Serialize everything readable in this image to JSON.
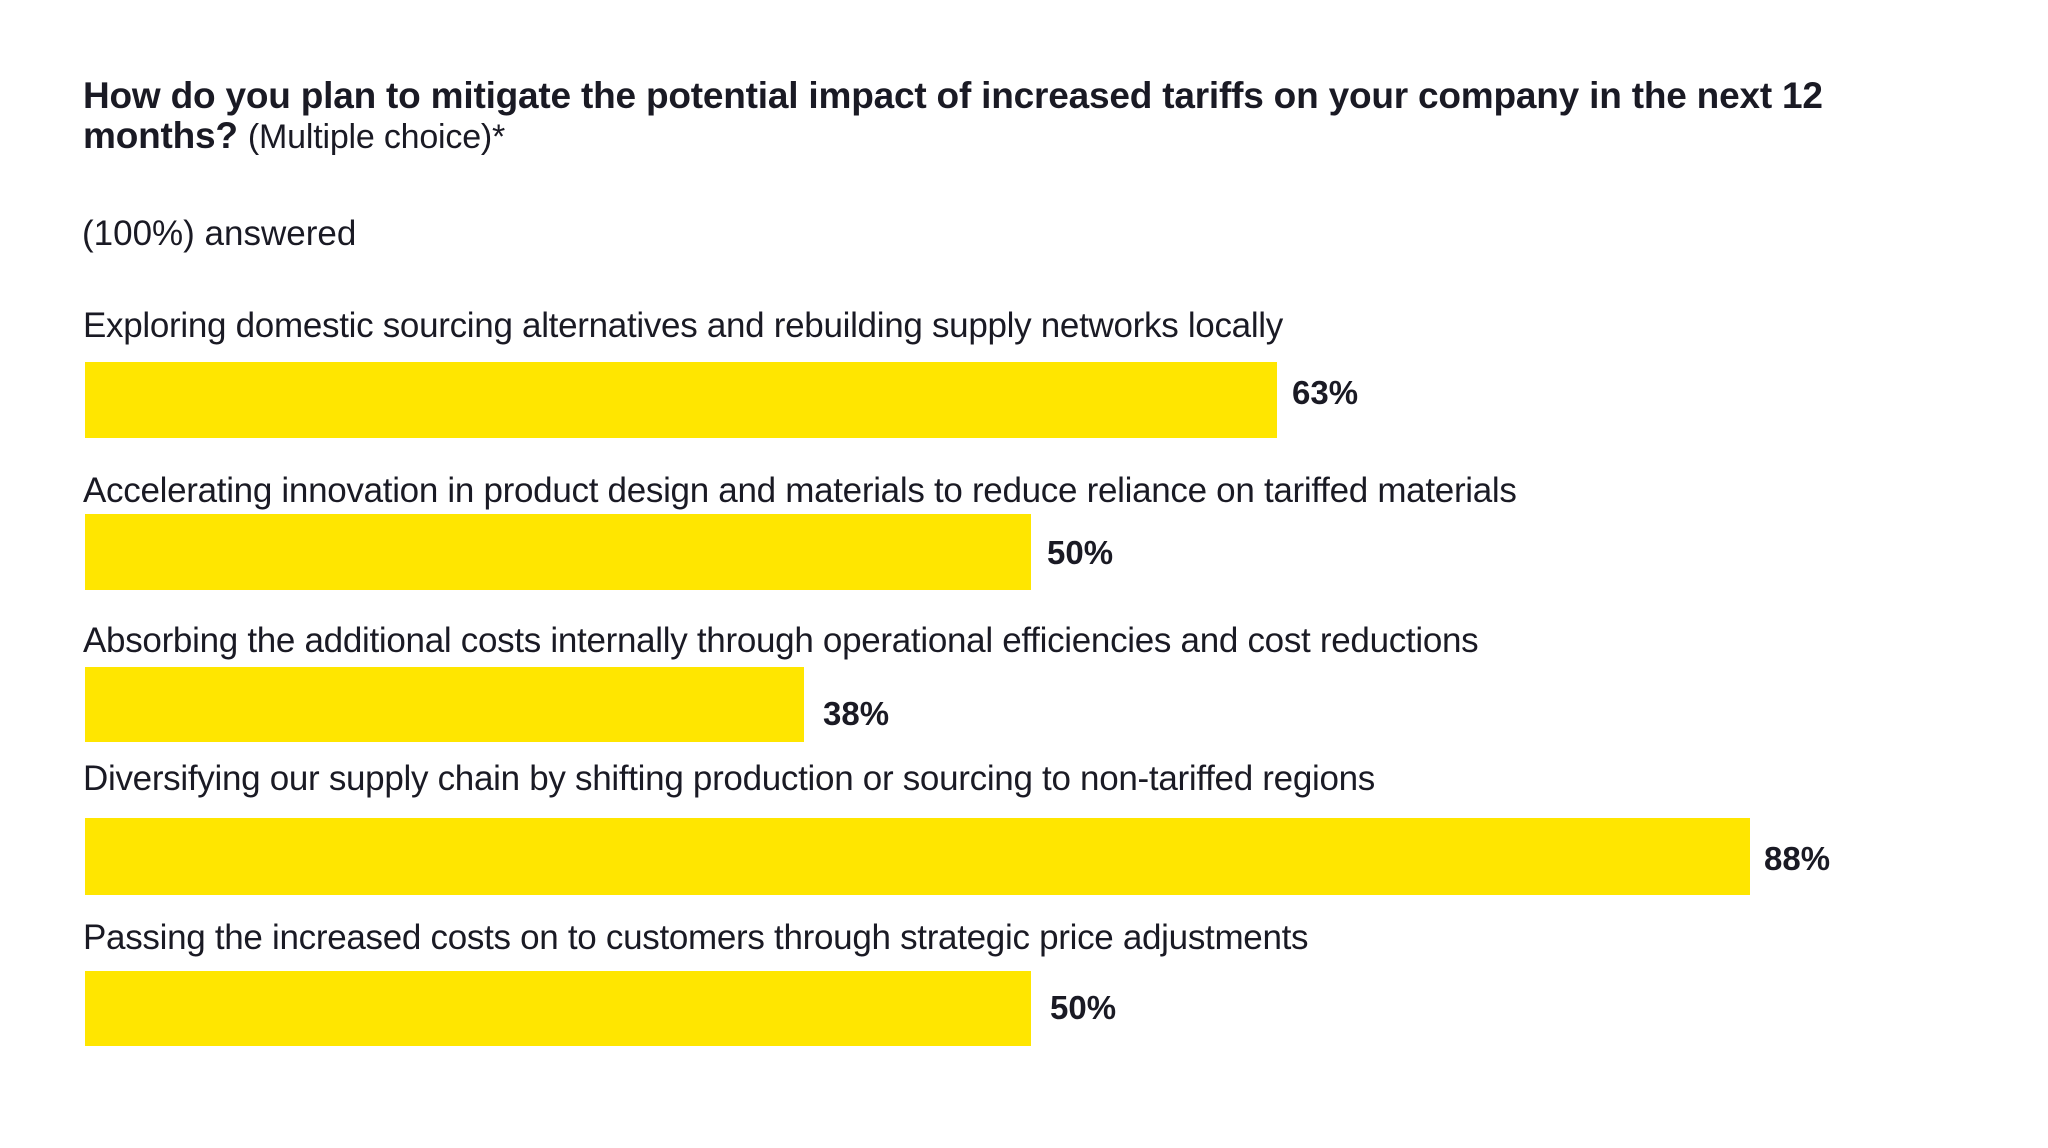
{
  "colors": {
    "bar": "#FFE600",
    "text": "#1A1A24",
    "background": "#FFFFFF"
  },
  "chart_data": {
    "type": "bar",
    "orientation": "horizontal",
    "title": "How do you plan to mitigate the potential impact of increased tariffs on your company in the next 12 months?",
    "title_suffix": "(Multiple choice)*",
    "subtitle": "(100%) answered",
    "xlabel": "",
    "ylabel": "",
    "xlim": [
      0,
      100
    ],
    "unit": "%",
    "grid": false,
    "legend": "none",
    "categories": [
      "Exploring domestic sourcing alternatives and rebuilding supply networks locally",
      "Accelerating innovation in product design and materials to reduce reliance on tariffed materials",
      "Absorbing the additional costs internally through operational efficiencies and cost reductions",
      "Diversifying our supply chain by shifting production or sourcing to non-tariffed regions",
      "Passing the increased costs on to customers through strategic price adjustments"
    ],
    "values": [
      63,
      50,
      38,
      88,
      50
    ],
    "value_labels": [
      "63%",
      "50%",
      "38%",
      "88%",
      "50%"
    ]
  }
}
